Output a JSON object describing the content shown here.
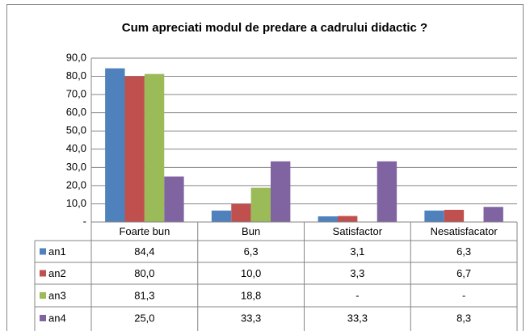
{
  "chart_data": {
    "type": "bar",
    "title": "Cum apreciati modul de predare a cadrului didactic ?",
    "categories": [
      "Foarte bun",
      "Bun",
      "Satisfactor",
      "Nesatisfacator"
    ],
    "series": [
      {
        "name": "an1",
        "color": "#4f81bd",
        "values": [
          84.4,
          6.3,
          3.1,
          6.3
        ],
        "value_labels": [
          "84,4",
          "6,3",
          "3,1",
          "6,3"
        ]
      },
      {
        "name": "an2",
        "color": "#c0504d",
        "values": [
          80.0,
          10.0,
          3.3,
          6.7
        ],
        "value_labels": [
          "80,0",
          "10,0",
          "3,3",
          "6,7"
        ]
      },
      {
        "name": "an3",
        "color": "#9bbb59",
        "values": [
          81.3,
          18.8,
          null,
          null
        ],
        "value_labels": [
          "81,3",
          "18,8",
          "-",
          "-"
        ]
      },
      {
        "name": "an4",
        "color": "#8064a2",
        "values": [
          25.0,
          33.3,
          33.3,
          8.3
        ],
        "value_labels": [
          "25,0",
          "33,3",
          "33,3",
          "8,3"
        ]
      }
    ],
    "ylim": [
      0,
      90
    ],
    "yticks": [
      {
        "value": 0,
        "label": "-"
      },
      {
        "value": 10,
        "label": "10,0"
      },
      {
        "value": 20,
        "label": "20,0"
      },
      {
        "value": 30,
        "label": "30,0"
      },
      {
        "value": 40,
        "label": "40,0"
      },
      {
        "value": 50,
        "label": "50,0"
      },
      {
        "value": 60,
        "label": "60,0"
      },
      {
        "value": 70,
        "label": "70,0"
      },
      {
        "value": 80,
        "label": "80,0"
      },
      {
        "value": 90,
        "label": "90,0"
      }
    ],
    "grid": true
  }
}
